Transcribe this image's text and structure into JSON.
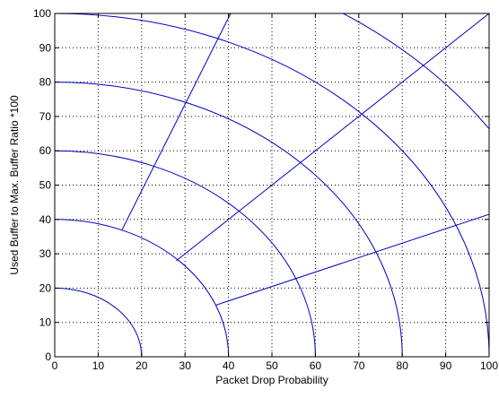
{
  "chart_data": {
    "type": "line",
    "title": "",
    "xlabel": "Packet Drop Probability",
    "ylabel": "Used Buffer to Max. Buffer Ratio *100",
    "xlim": [
      0,
      100
    ],
    "ylim": [
      0,
      100
    ],
    "xticks": [
      0,
      10,
      20,
      30,
      40,
      50,
      60,
      70,
      80,
      90,
      100
    ],
    "yticks": [
      0,
      10,
      20,
      30,
      40,
      50,
      60,
      70,
      80,
      90,
      100
    ],
    "grid": true,
    "grid_style": "dotted",
    "line_color": "#0000c0",
    "arcs": [
      {
        "center": [
          0,
          0
        ],
        "radius": 20
      },
      {
        "center": [
          0,
          0
        ],
        "radius": 40
      },
      {
        "center": [
          0,
          0
        ],
        "radius": 60
      },
      {
        "center": [
          0,
          0
        ],
        "radius": 80
      },
      {
        "center": [
          0,
          0
        ],
        "radius": 100
      },
      {
        "center": [
          0,
          0
        ],
        "radius": 120
      }
    ],
    "series": [
      {
        "x": [
          15.5,
          40.5
        ],
        "y": [
          37,
          100
        ]
      },
      {
        "x": [
          28,
          100
        ],
        "y": [
          28,
          100
        ]
      },
      {
        "x": [
          37,
          100
        ],
        "y": [
          15,
          41.5
        ]
      }
    ]
  }
}
